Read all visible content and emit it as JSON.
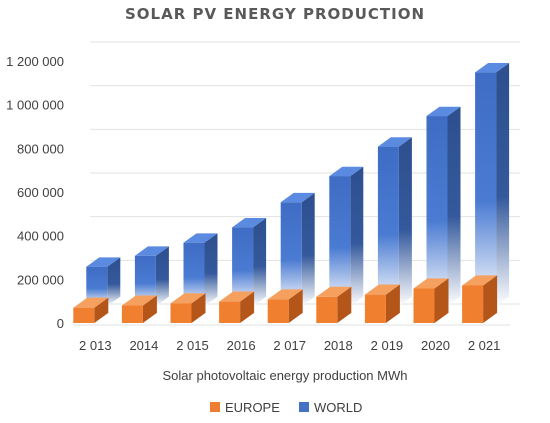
{
  "chart_data": {
    "type": "bar",
    "title": "SOLAR PV ENERGY PRODUCTION",
    "xlabel": "Solar photovoltaic energy production MWh",
    "ylabel": "",
    "categories": [
      "2 013",
      "2014",
      "2 015",
      "2016",
      "2 017",
      "2018",
      "2 019",
      "2020",
      "2 021"
    ],
    "ylim": [
      0,
      1200000
    ],
    "yticks": [
      0,
      200000,
      400000,
      600000,
      800000,
      1000000,
      1200000
    ],
    "ytick_labels": [
      "0",
      "200 000",
      "400 000",
      "600 000",
      "800 000",
      "1 000 000",
      "1 200 000"
    ],
    "series": [
      {
        "name": "EUROPE",
        "color": "#ED7D31",
        "values": [
          70000,
          80000,
          90000,
          98000,
          108000,
          120000,
          130000,
          158000,
          172000
        ]
      },
      {
        "name": "WORLD",
        "color": "#4472C4",
        "values": [
          180000,
          230000,
          290000,
          360000,
          475000,
          595000,
          730000,
          870000,
          1070000
        ]
      }
    ],
    "grid": true,
    "legend_position": "bottom",
    "style": "3d-clustered-columns"
  }
}
